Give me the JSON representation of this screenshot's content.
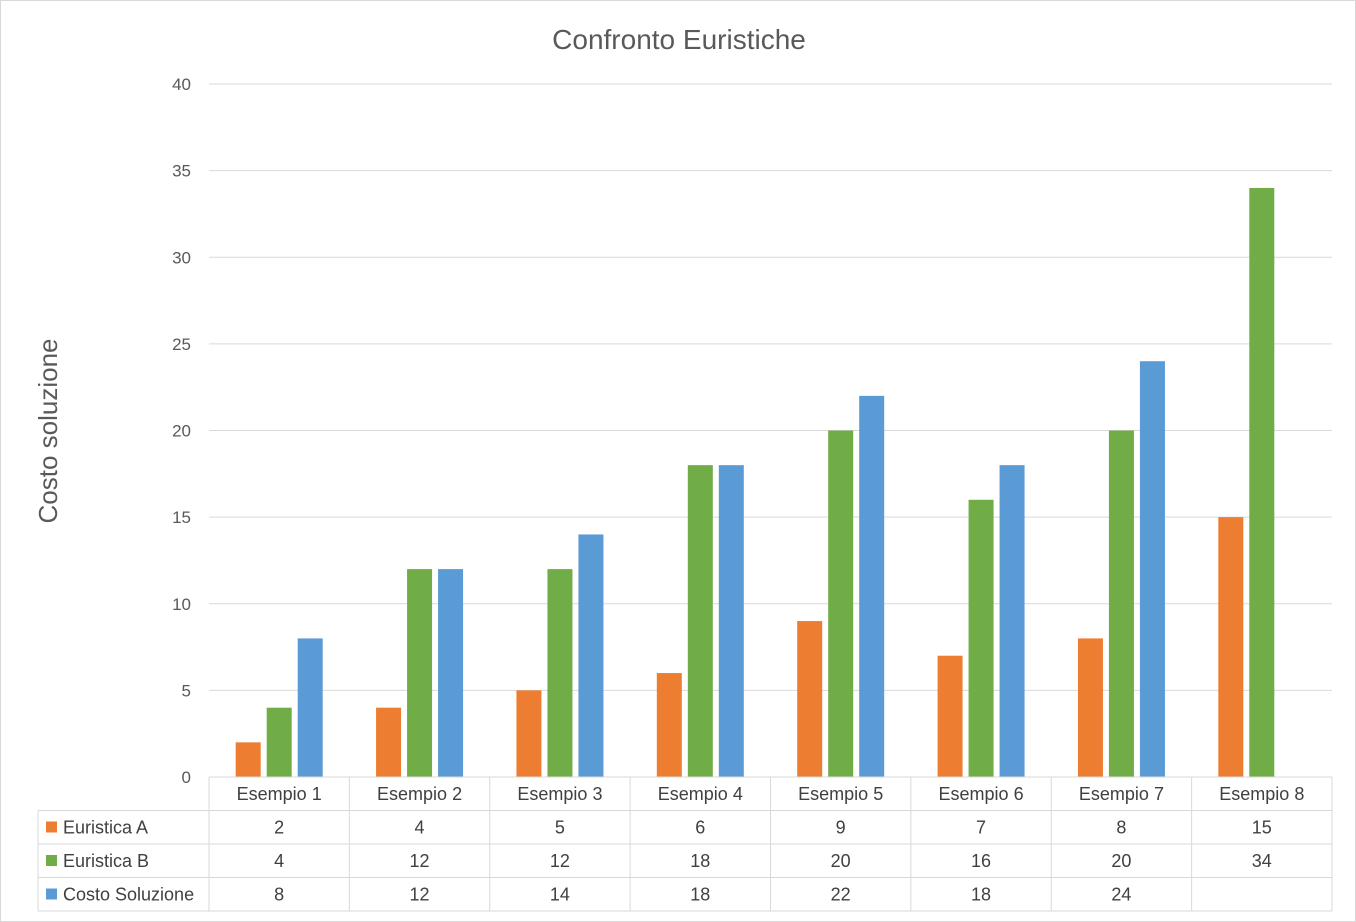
{
  "chart_data": {
    "type": "bar",
    "title": "Confronto Euristiche",
    "xlabel": "",
    "ylabel": "Costo soluzione",
    "ylim": [
      0,
      40
    ],
    "yticks": [
      0,
      5,
      10,
      15,
      20,
      25,
      30,
      35,
      40
    ],
    "grid": true,
    "legend": "data-table",
    "categories": [
      "Esempio 1",
      "Esempio 2",
      "Esempio 3",
      "Esempio 4",
      "Esempio 5",
      "Esempio 6",
      "Esempio 7",
      "Esempio 8"
    ],
    "series": [
      {
        "name": "Euristica A",
        "color": "#ed7d31",
        "values": [
          2,
          4,
          5,
          6,
          9,
          7,
          8,
          15
        ]
      },
      {
        "name": "Euristica B",
        "color": "#70ad47",
        "values": [
          4,
          12,
          12,
          18,
          20,
          16,
          20,
          34
        ]
      },
      {
        "name": "Costo Soluzione",
        "color": "#5b9bd5",
        "values": [
          8,
          12,
          14,
          18,
          22,
          18,
          24,
          null
        ]
      }
    ]
  }
}
